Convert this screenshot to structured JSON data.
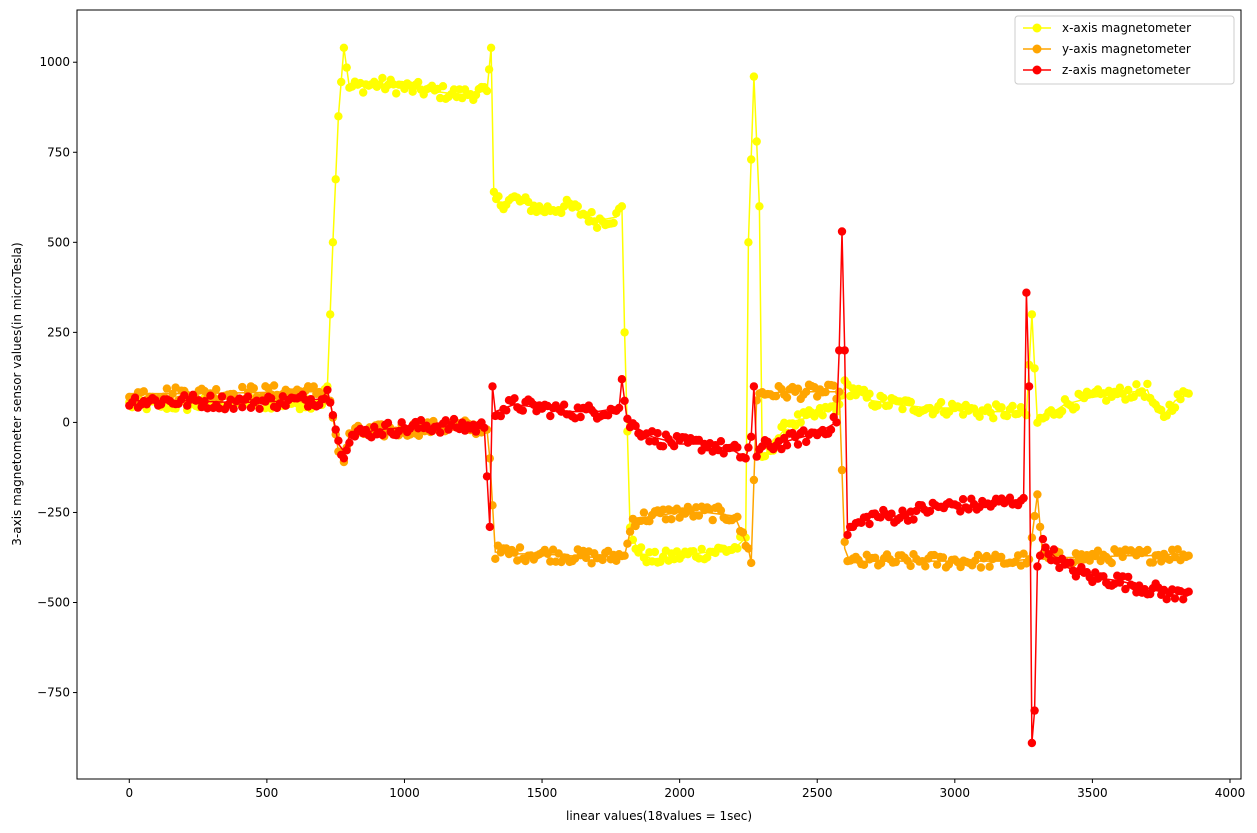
{
  "chart_data": {
    "type": "line",
    "title": "",
    "xlabel": "linear values(18values = 1sec)",
    "ylabel": "3-axis magnetometer sensor values(in microTesla)",
    "xlim": [
      -190,
      4040
    ],
    "ylim": [
      -990,
      1145
    ],
    "xticks": [
      0,
      500,
      1000,
      1500,
      2000,
      2500,
      3000,
      3500,
      4000
    ],
    "yticks": [
      -750,
      -500,
      -250,
      0,
      250,
      500,
      750,
      1000
    ],
    "ytick_labels": [
      "−750",
      "−500",
      "−250",
      "0",
      "250",
      "500",
      "750",
      "1000"
    ],
    "grid": false,
    "legend_position": "top-right",
    "marker": "circle",
    "series": [
      {
        "name": "x-axis magnetometer",
        "color": "#ffff00",
        "points": [
          [
            0,
            50
          ],
          [
            200,
            50
          ],
          [
            400,
            55
          ],
          [
            600,
            55
          ],
          [
            700,
            60
          ],
          [
            720,
            100
          ],
          [
            740,
            500
          ],
          [
            760,
            850
          ],
          [
            780,
            1040
          ],
          [
            800,
            930
          ],
          [
            900,
            940
          ],
          [
            1000,
            930
          ],
          [
            1100,
            920
          ],
          [
            1200,
            910
          ],
          [
            1300,
            920
          ],
          [
            1315,
            1040
          ],
          [
            1325,
            620
          ],
          [
            1350,
            610
          ],
          [
            1400,
            620
          ],
          [
            1500,
            590
          ],
          [
            1600,
            600
          ],
          [
            1700,
            560
          ],
          [
            1770,
            570
          ],
          [
            1790,
            600
          ],
          [
            1800,
            250
          ],
          [
            1820,
            -300
          ],
          [
            1850,
            -360
          ],
          [
            1900,
            -380
          ],
          [
            2000,
            -370
          ],
          [
            2100,
            -360
          ],
          [
            2200,
            -350
          ],
          [
            2240,
            -320
          ],
          [
            2250,
            500
          ],
          [
            2270,
            960
          ],
          [
            2290,
            600
          ],
          [
            2300,
            -100
          ],
          [
            2400,
            0
          ],
          [
            2500,
            20
          ],
          [
            2580,
            50
          ],
          [
            2600,
            100
          ],
          [
            2700,
            60
          ],
          [
            2800,
            50
          ],
          [
            2900,
            40
          ],
          [
            3000,
            40
          ],
          [
            3100,
            30
          ],
          [
            3200,
            30
          ],
          [
            3260,
            20
          ],
          [
            3280,
            300
          ],
          [
            3300,
            0
          ],
          [
            3400,
            50
          ],
          [
            3500,
            70
          ],
          [
            3600,
            80
          ],
          [
            3700,
            90
          ],
          [
            3730,
            30
          ],
          [
            3760,
            20
          ],
          [
            3800,
            60
          ],
          [
            3850,
            80
          ]
        ]
      },
      {
        "name": "y-axis magnetometer",
        "color": "#ffa500",
        "points": [
          [
            0,
            80
          ],
          [
            200,
            80
          ],
          [
            400,
            82
          ],
          [
            600,
            85
          ],
          [
            700,
            85
          ],
          [
            730,
            60
          ],
          [
            760,
            -80
          ],
          [
            780,
            -110
          ],
          [
            800,
            -30
          ],
          [
            1000,
            -20
          ],
          [
            1200,
            -10
          ],
          [
            1300,
            -20
          ],
          [
            1310,
            -100
          ],
          [
            1330,
            -360
          ],
          [
            1400,
            -365
          ],
          [
            1500,
            -365
          ],
          [
            1600,
            -370
          ],
          [
            1700,
            -375
          ],
          [
            1800,
            -370
          ],
          [
            1830,
            -270
          ],
          [
            1900,
            -260
          ],
          [
            2000,
            -250
          ],
          [
            2100,
            -250
          ],
          [
            2200,
            -260
          ],
          [
            2250,
            -350
          ],
          [
            2260,
            -390
          ],
          [
            2280,
            70
          ],
          [
            2300,
            80
          ],
          [
            2400,
            85
          ],
          [
            2500,
            85
          ],
          [
            2580,
            85
          ],
          [
            2600,
            -350
          ],
          [
            2620,
            -390
          ],
          [
            2700,
            -385
          ],
          [
            3000,
            -385
          ],
          [
            3200,
            -385
          ],
          [
            3270,
            -380
          ],
          [
            3300,
            -200
          ],
          [
            3320,
            -380
          ],
          [
            3400,
            -375
          ],
          [
            3500,
            -375
          ],
          [
            3600,
            -370
          ],
          [
            3700,
            -370
          ],
          [
            3800,
            -365
          ],
          [
            3850,
            -370
          ]
        ]
      },
      {
        "name": "z-axis magnetometer",
        "color": "#ff0000",
        "points": [
          [
            0,
            60
          ],
          [
            200,
            60
          ],
          [
            400,
            55
          ],
          [
            600,
            60
          ],
          [
            700,
            65
          ],
          [
            720,
            90
          ],
          [
            740,
            20
          ],
          [
            760,
            -60
          ],
          [
            780,
            -80
          ],
          [
            800,
            -40
          ],
          [
            900,
            -20
          ],
          [
            1000,
            -15
          ],
          [
            1100,
            -10
          ],
          [
            1200,
            -10
          ],
          [
            1290,
            -15
          ],
          [
            1300,
            -150
          ],
          [
            1310,
            -290
          ],
          [
            1320,
            100
          ],
          [
            1330,
            30
          ],
          [
            1400,
            50
          ],
          [
            1500,
            40
          ],
          [
            1600,
            30
          ],
          [
            1700,
            30
          ],
          [
            1780,
            40
          ],
          [
            1790,
            120
          ],
          [
            1810,
            0
          ],
          [
            1900,
            -40
          ],
          [
            2000,
            -60
          ],
          [
            2100,
            -60
          ],
          [
            2200,
            -80
          ],
          [
            2240,
            -100
          ],
          [
            2260,
            -40
          ],
          [
            2270,
            100
          ],
          [
            2280,
            -90
          ],
          [
            2300,
            -70
          ],
          [
            2400,
            -50
          ],
          [
            2500,
            -30
          ],
          [
            2570,
            0
          ],
          [
            2580,
            200
          ],
          [
            2590,
            530
          ],
          [
            2600,
            200
          ],
          [
            2610,
            -300
          ],
          [
            2700,
            -260
          ],
          [
            2800,
            -260
          ],
          [
            2900,
            -240
          ],
          [
            3000,
            -230
          ],
          [
            3100,
            -230
          ],
          [
            3200,
            -220
          ],
          [
            3250,
            -210
          ],
          [
            3260,
            360
          ],
          [
            3270,
            100
          ],
          [
            3280,
            -890
          ],
          [
            3290,
            -800
          ],
          [
            3300,
            -400
          ],
          [
            3320,
            -340
          ],
          [
            3400,
            -400
          ],
          [
            3500,
            -430
          ],
          [
            3600,
            -440
          ],
          [
            3700,
            -460
          ],
          [
            3800,
            -480
          ],
          [
            3850,
            -470
          ]
        ]
      }
    ]
  }
}
